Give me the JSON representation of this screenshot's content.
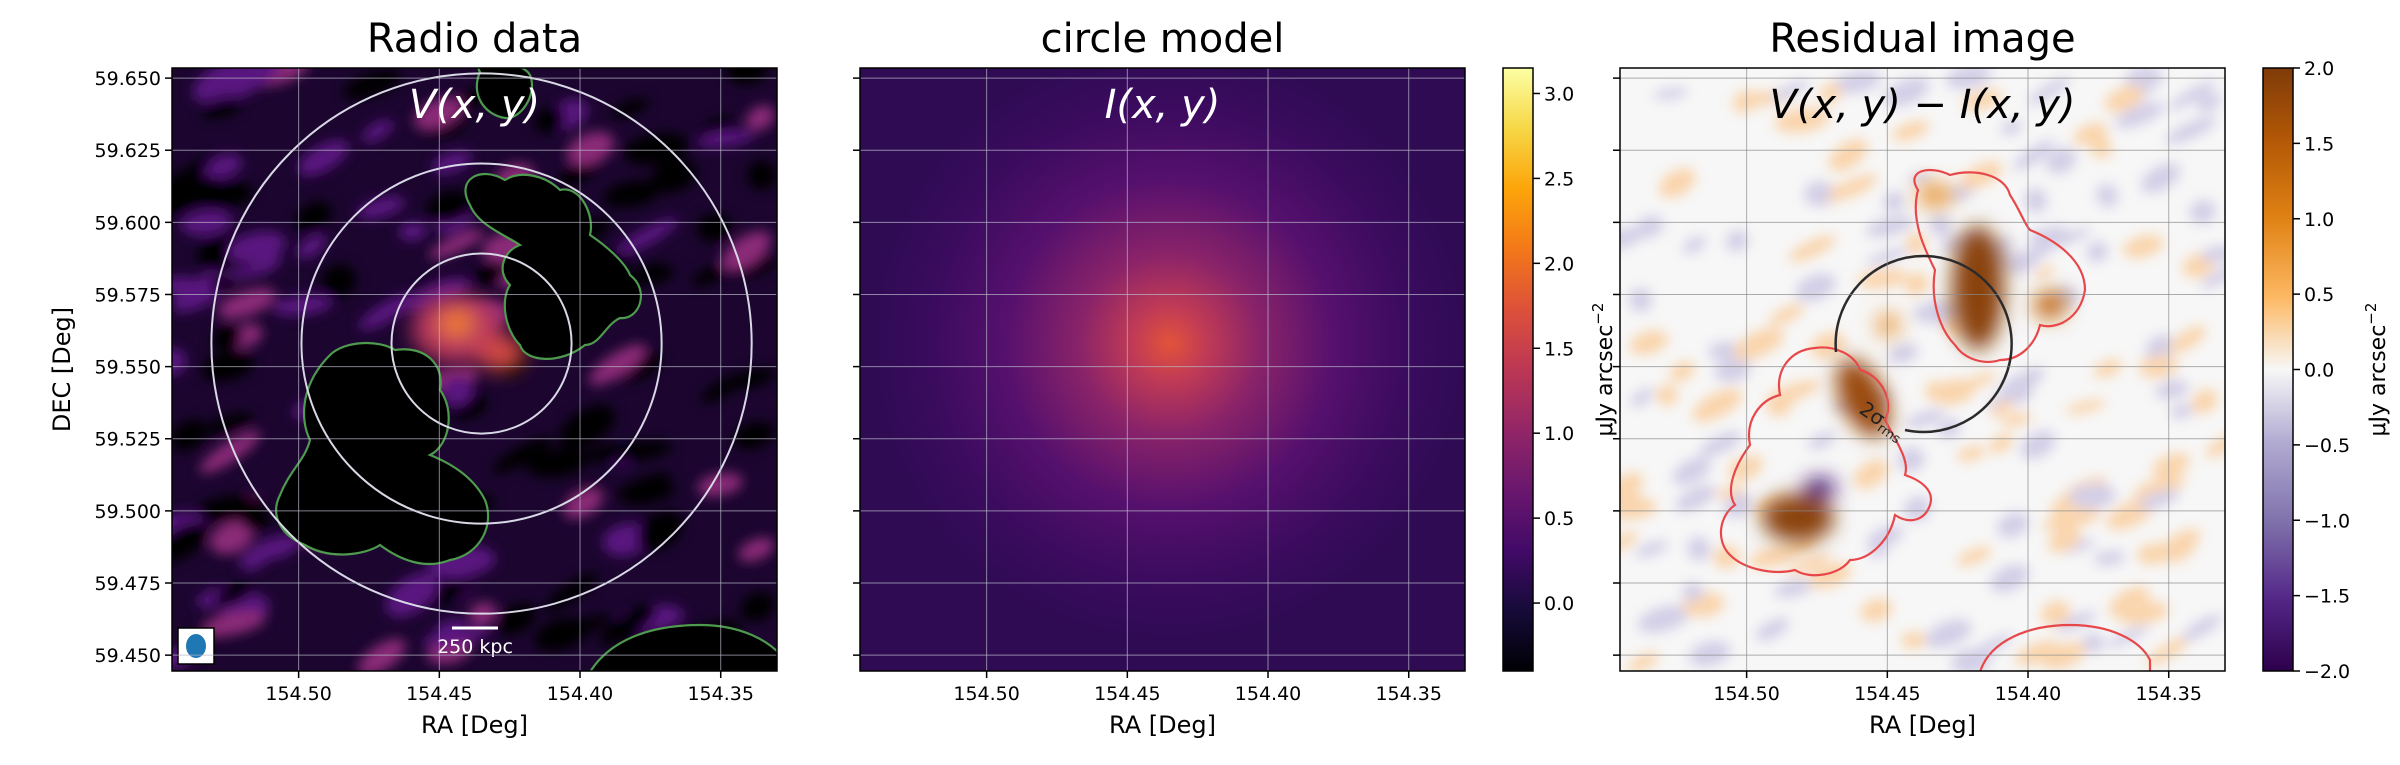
{
  "chart_data": [
    {
      "type": "heatmap",
      "title": "Radio data",
      "overlay_label": "V(x, y)",
      "xlabel": "RA [Deg]",
      "ylabel": "DEC [Deg]",
      "xlim": [
        154.545,
        154.33
      ],
      "ylim": [
        59.4445,
        59.6535
      ],
      "x_ticks": [
        154.5,
        154.45,
        154.4,
        154.35
      ],
      "x_tick_labels": [
        "154.50",
        "154.45",
        "154.40",
        "154.35"
      ],
      "y_ticks": [
        59.45,
        59.475,
        59.5,
        59.525,
        59.55,
        59.575,
        59.6,
        59.625,
        59.65
      ],
      "y_tick_labels": [
        "59.450",
        "59.475",
        "59.500",
        "59.525",
        "59.550",
        "59.575",
        "59.600",
        "59.625",
        "59.650"
      ],
      "grid": true,
      "colormap": "inferno",
      "center": [
        154.435,
        59.558
      ],
      "rings_deg": [
        0.016,
        0.032,
        0.048
      ],
      "mask_contour_color": "#4e9a4e",
      "scalebar_label": "250 kpc",
      "beam_color": "#1f77b4"
    },
    {
      "type": "heatmap",
      "title": "circle model",
      "overlay_label": "I(x, y)",
      "xlabel": "RA [Deg]",
      "ylabel": "",
      "xlim": [
        154.545,
        154.33
      ],
      "ylim": [
        59.4445,
        59.6535
      ],
      "x_ticks": [
        154.5,
        154.45,
        154.4,
        154.35
      ],
      "x_tick_labels": [
        "154.50",
        "154.45",
        "154.40",
        "154.35"
      ],
      "y_ticks": [
        59.45,
        59.475,
        59.5,
        59.525,
        59.55,
        59.575,
        59.6,
        59.625,
        59.65
      ],
      "grid": true,
      "colormap": "inferno",
      "model_center": [
        154.435,
        59.558
      ],
      "model_peak": 1.6,
      "colorbar": {
        "ticks": [
          0.0,
          0.5,
          1.0,
          1.5,
          2.0,
          2.5,
          3.0
        ],
        "tick_labels": [
          "0.0",
          "0.5",
          "1.0",
          "1.5",
          "2.0",
          "2.5",
          "3.0"
        ],
        "range": [
          -0.4,
          3.15
        ],
        "label": "μJy arcsec−2"
      }
    },
    {
      "type": "heatmap",
      "title": "Residual image",
      "overlay_label": "V(x, y) − I(x, y)",
      "xlabel": "RA [Deg]",
      "ylabel": "",
      "xlim": [
        154.545,
        154.33
      ],
      "ylim": [
        59.4445,
        59.6535
      ],
      "x_ticks": [
        154.5,
        154.45,
        154.4,
        154.35
      ],
      "x_tick_labels": [
        "154.50",
        "154.45",
        "154.40",
        "154.35"
      ],
      "y_ticks": [
        59.45,
        59.475,
        59.5,
        59.525,
        59.55,
        59.575,
        59.6,
        59.625,
        59.65
      ],
      "grid": true,
      "colormap": "PuOr_r",
      "mask_contour_color": "#e8474a",
      "radius_circle_color": "#2b2b2b",
      "radius_label": "2σ",
      "radius_label_sub": "rms",
      "colorbar": {
        "ticks": [
          -2.0,
          -1.5,
          -1.0,
          -0.5,
          0.0,
          0.5,
          1.0,
          1.5,
          2.0
        ],
        "tick_labels": [
          "−2.0",
          "−1.5",
          "−1.0",
          "−0.5",
          "0.0",
          "0.5",
          "1.0",
          "1.5",
          "2.0"
        ],
        "range": [
          -2.0,
          2.0
        ],
        "label": "μJy arcsec−2"
      }
    }
  ]
}
